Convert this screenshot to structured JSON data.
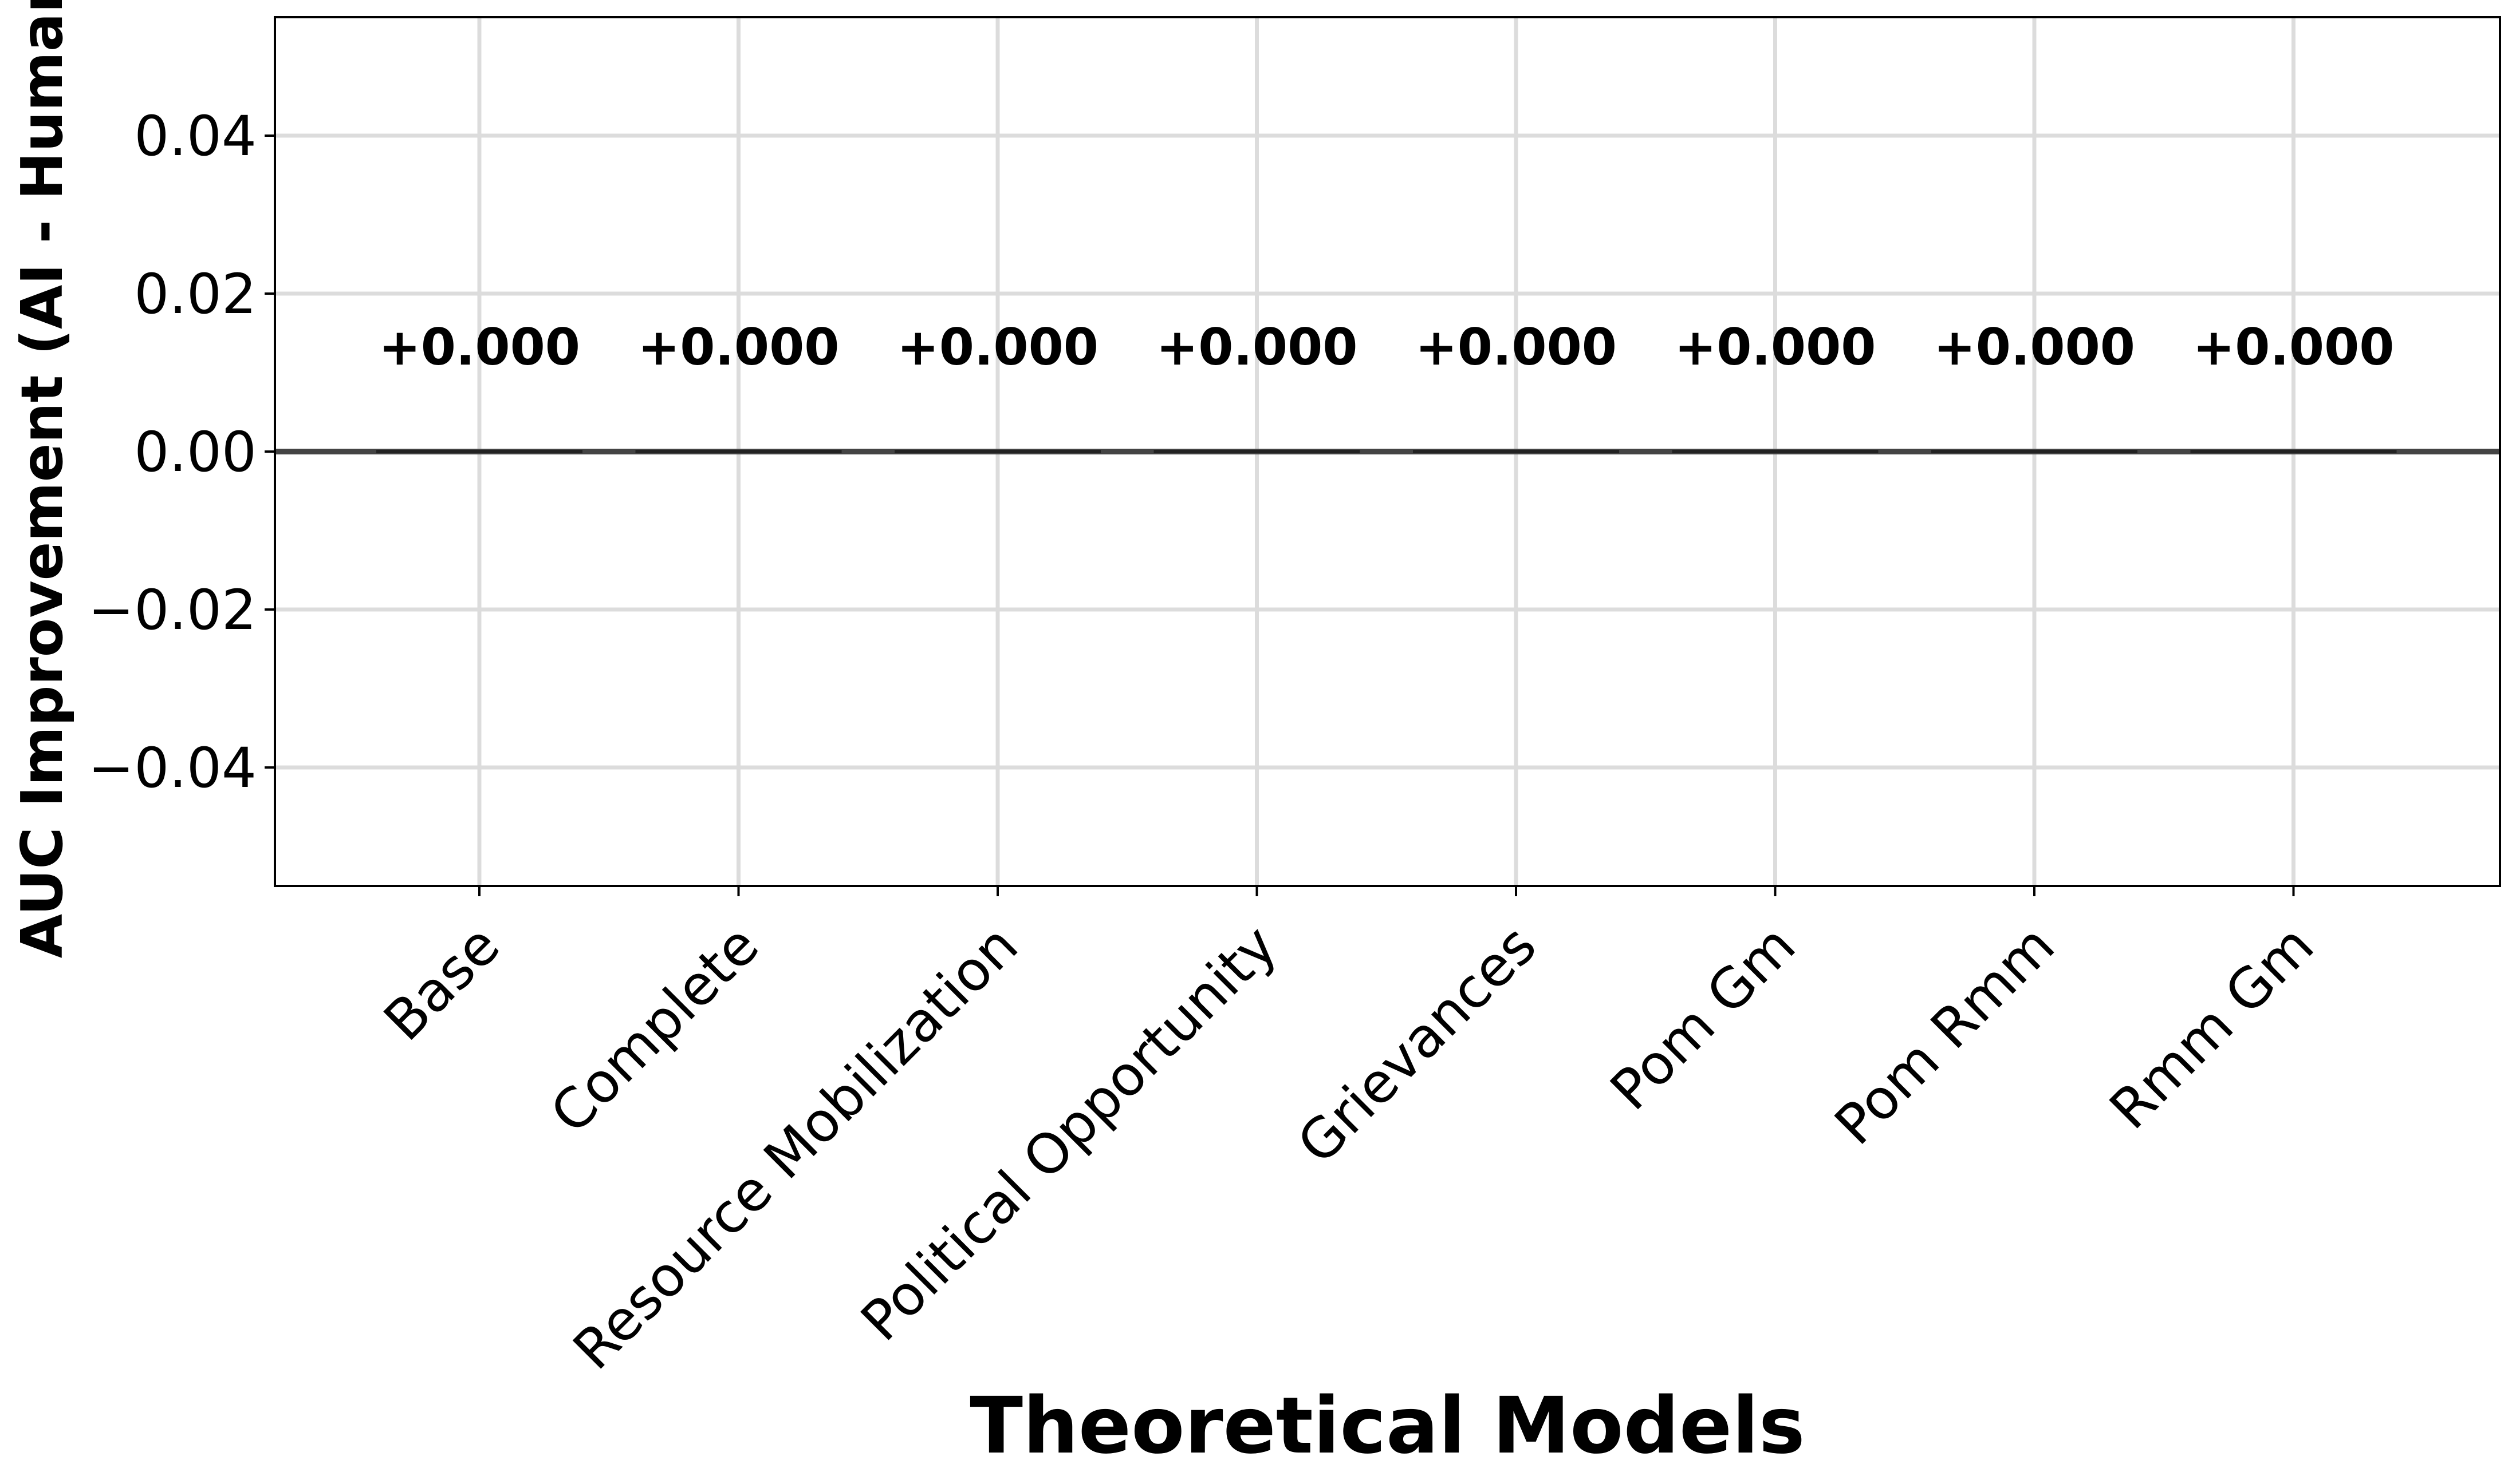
{
  "chart_data": {
    "type": "bar",
    "categories": [
      "Base",
      "Complete",
      "Resource Mobilization",
      "Political Opportunity",
      "Grievances",
      "Pom Gm",
      "Pom Rmm",
      "Rmm Gm"
    ],
    "values": [
      0.0,
      0.0,
      0.0,
      0.0,
      0.0,
      0.0,
      0.0,
      0.0
    ],
    "data_labels": [
      "+0.000",
      "+0.000",
      "+0.000",
      "+0.000",
      "+0.000",
      "+0.000",
      "+0.000",
      "+0.000"
    ],
    "title": "",
    "xlabel": "Theoretical Models",
    "ylabel": "AUC Improvement (AI - Human)",
    "ylim": [
      -0.055,
      0.055
    ],
    "yticks": [
      -0.04,
      -0.02,
      0.0,
      0.02,
      0.04
    ],
    "ytick_labels": [
      "−0.04",
      "−0.02",
      "0.00",
      "0.02",
      "0.04"
    ],
    "grid": true,
    "reference_line_y": 0.0,
    "colors": {
      "grid": "#dcdcdc",
      "axis": "#000000",
      "zero_line": "#444444",
      "bar": "#222222"
    }
  }
}
